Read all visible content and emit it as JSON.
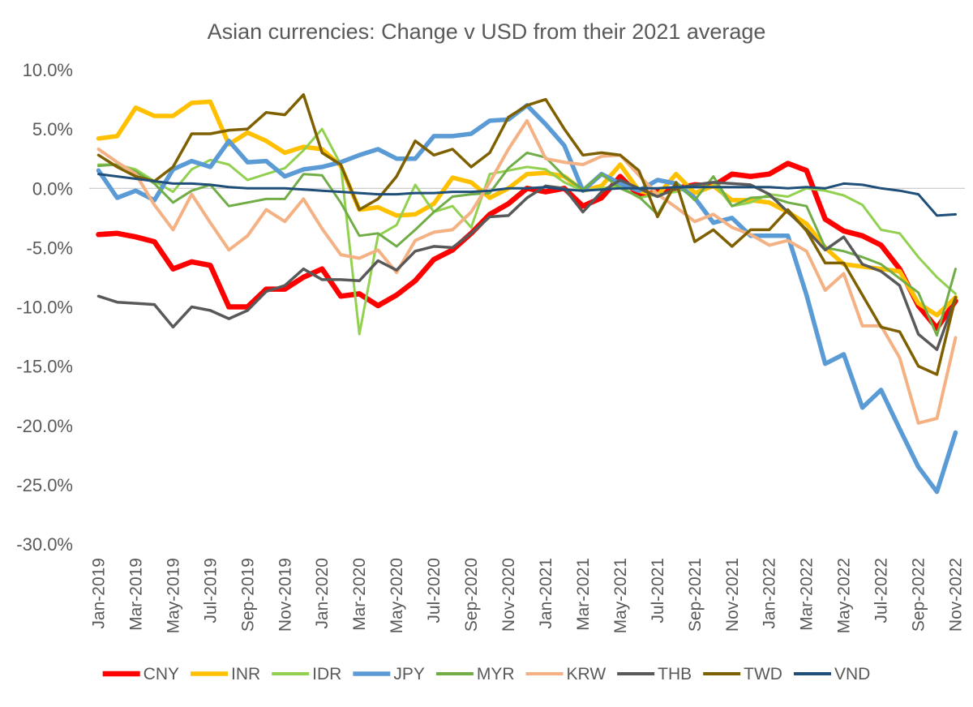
{
  "chart_data": {
    "type": "line",
    "title": "Asian currencies: Change v USD from their 2021 average",
    "xlabel": "",
    "ylabel": "",
    "ylim": [
      -30,
      10
    ],
    "y_ticks": [
      10,
      5,
      0,
      -5,
      -10,
      -15,
      -20,
      -25,
      -30
    ],
    "y_tick_labels": [
      "10.0%",
      "5.0%",
      "0.0%",
      "-5.0%",
      "-10.0%",
      "-15.0%",
      "-20.0%",
      "-25.0%",
      "-30.0%"
    ],
    "grid": false,
    "legend_position": "bottom",
    "x": [
      "Jan-2019",
      "Feb-2019",
      "Mar-2019",
      "Apr-2019",
      "May-2019",
      "Jun-2019",
      "Jul-2019",
      "Aug-2019",
      "Sep-2019",
      "Oct-2019",
      "Nov-2019",
      "Dec-2019",
      "Jan-2020",
      "Feb-2020",
      "Mar-2020",
      "Apr-2020",
      "May-2020",
      "Jun-2020",
      "Jul-2020",
      "Aug-2020",
      "Sep-2020",
      "Oct-2020",
      "Nov-2020",
      "Dec-2020",
      "Jan-2021",
      "Feb-2021",
      "Mar-2021",
      "Apr-2021",
      "May-2021",
      "Jun-2021",
      "Jul-2021",
      "Aug-2021",
      "Sep-2021",
      "Oct-2021",
      "Nov-2021",
      "Dec-2021",
      "Jan-2022",
      "Feb-2022",
      "Mar-2022",
      "Apr-2022",
      "May-2022",
      "Jun-2022",
      "Jul-2022",
      "Aug-2022",
      "Sep-2022",
      "Oct-2022",
      "Nov-2022"
    ],
    "x_tick_labels": [
      "Jan-2019",
      "Mar-2019",
      "May-2019",
      "Jul-2019",
      "Sep-2019",
      "Nov-2019",
      "Jan-2020",
      "Mar-2020",
      "May-2020",
      "Jul-2020",
      "Sep-2020",
      "Nov-2020",
      "Jan-2021",
      "Mar-2021",
      "May-2021",
      "Jul-2021",
      "Sep-2021",
      "Nov-2021",
      "Jan-2022",
      "Mar-2022",
      "May-2022",
      "Jul-2022",
      "Sep-2022",
      "Nov-2022"
    ],
    "series": [
      {
        "name": "CNY",
        "color": "#ff0000",
        "width": 6.5,
        "values": [
          -3.9,
          -3.8,
          -4.1,
          -4.5,
          -6.8,
          -6.2,
          -6.5,
          -10.0,
          -10.0,
          -8.5,
          -8.5,
          -7.5,
          -6.8,
          -9.1,
          -8.9,
          -9.9,
          -9.0,
          -7.8,
          -6.0,
          -5.2,
          -3.8,
          -2.2,
          -1.3,
          0.0,
          -0.3,
          0.0,
          -1.5,
          -0.8,
          1.0,
          -0.6,
          -0.3,
          0.0,
          0.3,
          0.2,
          1.2,
          1.0,
          1.2,
          2.1,
          1.5,
          -2.6,
          -3.6,
          -4.0,
          -4.8,
          -6.8,
          -9.9,
          -11.8,
          -9.5
        ]
      },
      {
        "name": "INR",
        "color": "#ffc000",
        "width": 5.5,
        "values": [
          4.2,
          4.4,
          6.8,
          6.1,
          6.1,
          7.2,
          7.3,
          3.7,
          4.7,
          4.0,
          3.0,
          3.5,
          3.3,
          1.9,
          -1.8,
          -1.6,
          -2.3,
          -2.2,
          -1.3,
          0.9,
          0.5,
          -0.8,
          0.0,
          1.2,
          1.3,
          1.0,
          -0.2,
          0.2,
          2.0,
          -0.2,
          -0.6,
          1.2,
          -0.4,
          0.2,
          -1.0,
          -1.0,
          -1.2,
          -2.0,
          -3.0,
          -5.0,
          -6.4,
          -6.6,
          -6.8,
          -7.0,
          -9.7,
          -10.7,
          -9.2
        ]
      },
      {
        "name": "IDR",
        "color": "#92d050",
        "width": 3,
        "values": [
          2.0,
          2.0,
          1.6,
          0.6,
          -0.3,
          1.6,
          2.4,
          2.0,
          0.7,
          1.2,
          1.7,
          3.2,
          5.0,
          2.0,
          -12.3,
          -4.0,
          -3.1,
          0.3,
          -2.0,
          -1.5,
          -3.3,
          1.2,
          1.5,
          1.8,
          1.6,
          0.5,
          -0.2,
          0.0,
          0.2,
          -0.8,
          -0.5,
          -0.3,
          0.2,
          0.5,
          -1.5,
          -1.2,
          -0.5,
          -0.7,
          0.0,
          -0.2,
          -0.6,
          -1.4,
          -3.5,
          -3.8,
          -5.8,
          -7.5,
          -8.9
        ]
      },
      {
        "name": "JPY",
        "color": "#5b9bd5",
        "width": 5.5,
        "values": [
          1.5,
          -0.8,
          -0.2,
          -1.0,
          1.6,
          2.3,
          1.8,
          4.0,
          2.2,
          2.3,
          1.0,
          1.6,
          1.8,
          2.2,
          2.8,
          3.3,
          2.5,
          2.5,
          4.4,
          4.4,
          4.6,
          5.7,
          5.8,
          7.0,
          5.4,
          3.6,
          -0.2,
          1.2,
          0.4,
          -0.2,
          0.7,
          0.4,
          -0.8,
          -2.9,
          -2.5,
          -4.0,
          -4.0,
          -4.0,
          -9.0,
          -14.8,
          -14.0,
          -18.5,
          -17.0,
          -20.3,
          -23.5,
          -25.6,
          -20.6
        ]
      },
      {
        "name": "MYR",
        "color": "#70ad47",
        "width": 3,
        "values": [
          1.9,
          2.0,
          1.4,
          0.4,
          -1.2,
          -0.2,
          0.3,
          -1.5,
          -1.2,
          -0.9,
          -0.9,
          1.2,
          1.1,
          -1.2,
          -4.0,
          -3.8,
          -4.9,
          -3.5,
          -2.0,
          -0.7,
          -0.5,
          -0.4,
          1.7,
          3.0,
          2.6,
          1.0,
          -0.1,
          1.2,
          0.0,
          -0.7,
          -2.2,
          0.5,
          -1.0,
          1.0,
          -1.5,
          -0.8,
          -0.7,
          -1.2,
          -1.5,
          -5.0,
          -5.3,
          -5.8,
          -6.4,
          -7.6,
          -8.8,
          -12.4,
          -6.8
        ]
      },
      {
        "name": "KRW",
        "color": "#f4b183",
        "width": 4,
        "values": [
          3.3,
          2.2,
          1.2,
          -1.4,
          -3.5,
          -0.5,
          -2.9,
          -5.2,
          -4.0,
          -1.8,
          -2.8,
          -0.9,
          -3.4,
          -5.6,
          -5.9,
          -5.2,
          -7.1,
          -4.4,
          -3.7,
          -3.5,
          -2.0,
          0.5,
          3.3,
          5.7,
          2.5,
          2.2,
          2.0,
          2.7,
          2.8,
          1.1,
          -0.5,
          -1.6,
          -2.8,
          -2.2,
          -3.3,
          -3.9,
          -4.8,
          -4.4,
          -5.3,
          -8.6,
          -7.2,
          -11.6,
          -11.6,
          -14.3,
          -19.8,
          -19.4,
          -12.6
        ]
      },
      {
        "name": "THB",
        "color": "#595959",
        "width": 3.5,
        "values": [
          -9.1,
          -9.6,
          -9.7,
          -9.8,
          -11.7,
          -10.0,
          -10.3,
          -11.0,
          -10.3,
          -8.7,
          -8.2,
          -6.8,
          -7.7,
          -7.7,
          -7.8,
          -6.1,
          -6.9,
          -5.3,
          -4.9,
          -5.0,
          -3.8,
          -2.4,
          -2.3,
          -0.8,
          0.2,
          0.0,
          -2.0,
          -0.3,
          0.7,
          0.0,
          -0.7,
          0.0,
          0.3,
          0.5,
          0.4,
          0.3,
          -0.5,
          -2.0,
          -3.5,
          -5.2,
          -4.1,
          -6.4,
          -7.0,
          -8.2,
          -12.3,
          -13.6,
          -9.2
        ]
      },
      {
        "name": "TWD",
        "color": "#7f6000",
        "width": 3.5,
        "values": [
          2.8,
          1.8,
          1.0,
          0.6,
          1.8,
          4.6,
          4.6,
          4.9,
          5.0,
          6.4,
          6.2,
          7.9,
          3.0,
          2.0,
          -1.8,
          -0.9,
          1.0,
          4.0,
          2.8,
          3.3,
          1.8,
          3.0,
          6.0,
          7.0,
          7.5,
          5.0,
          2.8,
          3.0,
          2.8,
          1.5,
          -2.4,
          0.5,
          -4.5,
          -3.5,
          -4.9,
          -3.5,
          -3.5,
          -1.8,
          -3.6,
          -6.3,
          -6.3,
          -9.0,
          -11.7,
          -12.1,
          -15.0,
          -15.7,
          -9.2
        ]
      },
      {
        "name": "VND",
        "color": "#1f4e79",
        "width": 3,
        "values": [
          1.2,
          1.0,
          0.8,
          0.6,
          0.4,
          0.4,
          0.3,
          0.1,
          0.0,
          0.0,
          0.0,
          -0.1,
          -0.2,
          -0.3,
          -0.4,
          -0.5,
          -0.5,
          -0.4,
          -0.4,
          -0.3,
          -0.3,
          -0.2,
          0.0,
          0.0,
          0.1,
          -0.1,
          -0.2,
          -0.1,
          0.0,
          0.0,
          0.0,
          0.1,
          0.1,
          0.1,
          0.1,
          0.1,
          0.1,
          0.0,
          0.1,
          0.0,
          0.4,
          0.3,
          0.0,
          -0.2,
          -0.5,
          -2.3,
          -2.2
        ]
      }
    ]
  }
}
